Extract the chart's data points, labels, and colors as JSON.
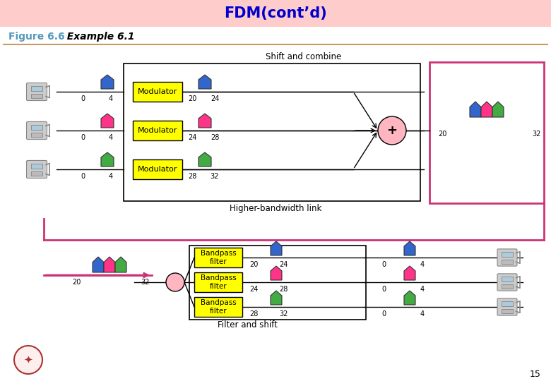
{
  "title": "FDM(cont’d)",
  "title_color": "#0000CC",
  "title_bg": "#FFCCCC",
  "fig_label": "Figure 6.6",
  "fig_italic": "  Example 6.1",
  "fig_label_color": "#5599BB",
  "separator_color": "#CC9966",
  "pink_border_color": "#CC3377",
  "modulator_color": "#FFFF00",
  "bandpass_color": "#FFFF00",
  "plus_circle_color": "#FFB6C1",
  "splitter_circle_color": "#FFB6C1",
  "blue_house": "#3366CC",
  "pink_house": "#FF3388",
  "green_house": "#44AA44",
  "page_num": "15",
  "shift_combine_text": "Shift and combine",
  "higher_bw_text": "Higher-bandwidth link",
  "filter_shift_text": "Filter and shift"
}
